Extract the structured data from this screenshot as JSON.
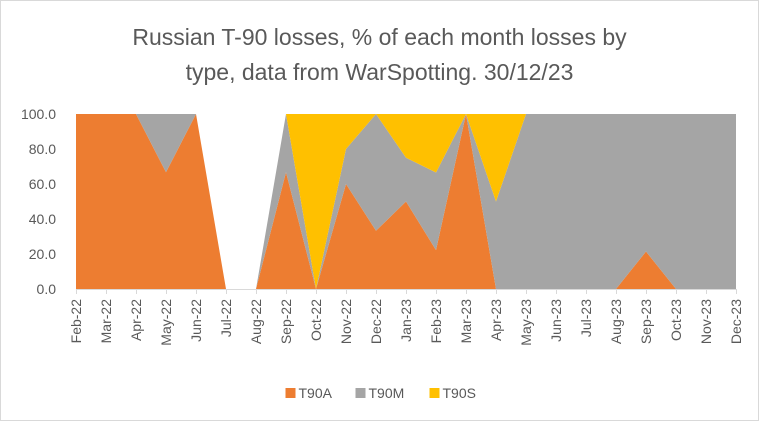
{
  "chart_data": {
    "type": "area",
    "stacked": true,
    "title_lines": [
      "Russian T-90 losses, % of each month losses by",
      "type, data from WarSpotting. 30/12/23"
    ],
    "xlabel": "",
    "ylabel": "",
    "ylim": [
      0,
      100
    ],
    "yticks": [
      "0.0",
      "20.0",
      "40.0",
      "60.0",
      "80.0",
      "100.0"
    ],
    "grid": false,
    "legend_position": "bottom",
    "categories": [
      "Feb-22",
      "Mar-22",
      "Apr-22",
      "May-22",
      "Jun-22",
      "Jul-22",
      "Aug-22",
      "Sep-22",
      "Oct-22",
      "Nov-22",
      "Dec-22",
      "Jan-23",
      "Feb-23",
      "Mar-23",
      "Apr-23",
      "May-23",
      "Jun-23",
      "Jul-23",
      "Aug-23",
      "Sep-23",
      "Oct-23",
      "Nov-23",
      "Dec-23"
    ],
    "series": [
      {
        "name": "T90A",
        "color": "#ed7d31",
        "values": [
          100,
          100,
          100,
          66.7,
          100,
          0,
          0,
          66.7,
          0,
          60,
          33.3,
          50,
          22.2,
          100,
          0,
          0,
          0,
          0,
          0,
          21.4,
          0,
          0,
          0
        ]
      },
      {
        "name": "T90M",
        "color": "#a5a5a5",
        "values": [
          0,
          0,
          0,
          33.3,
          0,
          0,
          0,
          33.3,
          0,
          20,
          66.7,
          25,
          44.4,
          0,
          50,
          100,
          100,
          100,
          100,
          78.6,
          100,
          100,
          100
        ]
      },
      {
        "name": "T90S",
        "color": "#ffc000",
        "values": [
          0,
          0,
          0,
          0,
          0,
          0,
          0,
          0,
          100,
          20,
          0,
          25,
          33.4,
          0,
          50,
          0,
          0,
          0,
          0,
          0,
          0,
          0,
          0
        ]
      }
    ]
  }
}
